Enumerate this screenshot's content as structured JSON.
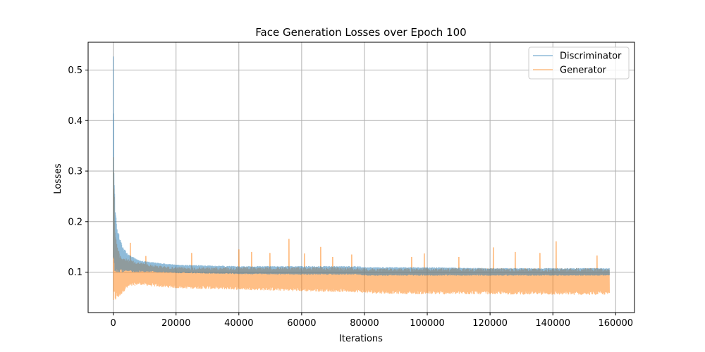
{
  "chart_data": {
    "type": "line",
    "title": "Face Generation Losses over Epoch 100",
    "xlabel": "Iterations",
    "ylabel": "Losses",
    "xlim": [
      -8000,
      166000
    ],
    "ylim": [
      0.02,
      0.555
    ],
    "xticks": [
      0,
      20000,
      40000,
      60000,
      80000,
      100000,
      120000,
      140000,
      160000
    ],
    "xtick_labels": [
      "0",
      "20000",
      "40000",
      "60000",
      "80000",
      "100000",
      "120000",
      "140000",
      "160000"
    ],
    "yticks": [
      0.1,
      0.2,
      0.3,
      0.4,
      0.5
    ],
    "ytick_labels": [
      "0.1",
      "0.2",
      "0.3",
      "0.4",
      "0.5"
    ],
    "grid": true,
    "legend_position": "top-right",
    "series": [
      {
        "name": "Discriminator",
        "color": "#1f77b4",
        "opacity": 0.5,
        "x": [
          0,
          200,
          500,
          1000,
          2000,
          3000,
          5000,
          8000,
          12000,
          20000,
          40000,
          60000,
          78000,
          80000,
          100000,
          120000,
          140000,
          158000
        ],
        "upper": [
          0.54,
          0.33,
          0.24,
          0.2,
          0.17,
          0.15,
          0.135,
          0.125,
          0.12,
          0.115,
          0.112,
          0.112,
          0.112,
          0.11,
          0.11,
          0.108,
          0.108,
          0.108
        ],
        "lower": [
          0.1,
          0.1,
          0.1,
          0.1,
          0.1,
          0.1,
          0.1,
          0.1,
          0.1,
          0.098,
          0.096,
          0.095,
          0.095,
          0.093,
          0.093,
          0.093,
          0.093,
          0.093
        ]
      },
      {
        "name": "Generator",
        "color": "#ff7f0e",
        "opacity": 0.5,
        "x": [
          0,
          200,
          500,
          1000,
          2000,
          3000,
          5000,
          8000,
          12000,
          20000,
          40000,
          60000,
          78000,
          80000,
          100000,
          120000,
          140000,
          158000
        ],
        "upper": [
          0.36,
          0.3,
          0.2,
          0.16,
          0.14,
          0.13,
          0.125,
          0.12,
          0.115,
          0.11,
          0.11,
          0.11,
          0.11,
          0.108,
          0.108,
          0.108,
          0.108,
          0.108
        ],
        "lower": [
          0.03,
          0.035,
          0.04,
          0.045,
          0.05,
          0.06,
          0.07,
          0.075,
          0.072,
          0.068,
          0.065,
          0.062,
          0.06,
          0.058,
          0.056,
          0.056,
          0.055,
          0.055
        ],
        "spikes": [
          {
            "x": 5500,
            "y": 0.158
          },
          {
            "x": 10500,
            "y": 0.132
          },
          {
            "x": 25000,
            "y": 0.138
          },
          {
            "x": 40000,
            "y": 0.145
          },
          {
            "x": 44000,
            "y": 0.14
          },
          {
            "x": 50000,
            "y": 0.138
          },
          {
            "x": 56000,
            "y": 0.166
          },
          {
            "x": 61000,
            "y": 0.137
          },
          {
            "x": 66000,
            "y": 0.15
          },
          {
            "x": 70000,
            "y": 0.13
          },
          {
            "x": 76000,
            "y": 0.135
          },
          {
            "x": 95000,
            "y": 0.13
          },
          {
            "x": 99000,
            "y": 0.137
          },
          {
            "x": 110000,
            "y": 0.13
          },
          {
            "x": 121000,
            "y": 0.149
          },
          {
            "x": 128000,
            "y": 0.14
          },
          {
            "x": 136000,
            "y": 0.138
          },
          {
            "x": 141000,
            "y": 0.161
          },
          {
            "x": 154000,
            "y": 0.133
          }
        ]
      }
    ]
  }
}
